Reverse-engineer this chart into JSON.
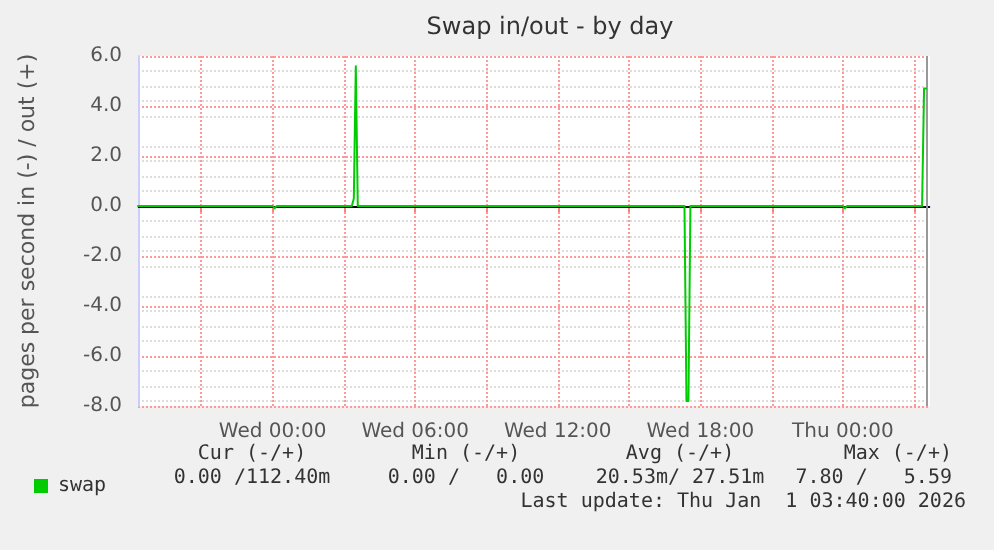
{
  "chart_data": {
    "type": "line",
    "title": "Swap in/out - by day",
    "ylabel": "pages per second in (-) / out (+)",
    "x": [
      "2025-12-30T18:20",
      "2025-12-31T00:00",
      "2025-12-31T00:05",
      "2025-12-31T00:10",
      "2025-12-31T03:20",
      "2025-12-31T03:25",
      "2025-12-31T03:30",
      "2025-12-31T03:35",
      "2025-12-31T17:20",
      "2025-12-31T17:25",
      "2025-12-31T17:30",
      "2025-12-31T17:35",
      "2026-01-01T00:00",
      "2026-01-01T00:05",
      "2026-01-01T00:10",
      "2026-01-01T03:20",
      "2026-01-01T03:25",
      "2026-01-01T03:30"
    ],
    "series": [
      {
        "name": "swap",
        "color": "#00cc00",
        "values": [
          0,
          0,
          -0.1,
          0,
          0,
          0.3,
          5.59,
          0,
          0,
          -7.8,
          -7.8,
          0,
          0,
          -0.1,
          0,
          0,
          4.7,
          4.7
        ]
      }
    ],
    "xlim": [
      "2025-12-30T18:20",
      "2026-01-01T03:40"
    ],
    "xticks": [
      {
        "value": "2025-12-30T21:00",
        "label": null
      },
      {
        "value": "2025-12-31T00:00",
        "label": "Wed 00:00"
      },
      {
        "value": "2025-12-31T03:00",
        "label": null
      },
      {
        "value": "2025-12-31T06:00",
        "label": "Wed 06:00"
      },
      {
        "value": "2025-12-31T09:00",
        "label": null
      },
      {
        "value": "2025-12-31T12:00",
        "label": "Wed 12:00"
      },
      {
        "value": "2025-12-31T15:00",
        "label": null
      },
      {
        "value": "2025-12-31T18:00",
        "label": "Wed 18:00"
      },
      {
        "value": "2025-12-31T21:00",
        "label": null
      },
      {
        "value": "2026-01-01T00:00",
        "label": "Thu 00:00"
      },
      {
        "value": "2026-01-01T03:00",
        "label": null
      }
    ],
    "ylim": [
      -8,
      6
    ],
    "yticks": [
      {
        "value": -8,
        "label": "-8.0"
      },
      {
        "value": -6,
        "label": "-6.0"
      },
      {
        "value": -4,
        "label": "-4.0"
      },
      {
        "value": -2,
        "label": "-2.0"
      },
      {
        "value": 0,
        "label": "0.0"
      },
      {
        "value": 2,
        "label": "2.0"
      },
      {
        "value": 4,
        "label": "4.0"
      },
      {
        "value": 6,
        "label": "6.0"
      }
    ],
    "ref_lines": [
      {
        "axis": "y",
        "value": 0,
        "label": null,
        "color": "#000000"
      },
      {
        "axis": "x",
        "value": "2026-01-01T03:30",
        "label": null,
        "color": "#999999"
      }
    ],
    "grid": true,
    "legend": "bottom left",
    "marker": "none",
    "line_style": "solid",
    "annotations": [
      "Cur (-/+)",
      "Min (-/+)",
      "Avg (-/+)",
      "Max (-/+)",
      "0.00 /112.40m",
      "0.00 /   0.00",
      "20.53m/ 27.51m",
      "7.80 /   5.59",
      "Last update: Thu Jan  1 03:40:00 2026"
    ]
  }
}
